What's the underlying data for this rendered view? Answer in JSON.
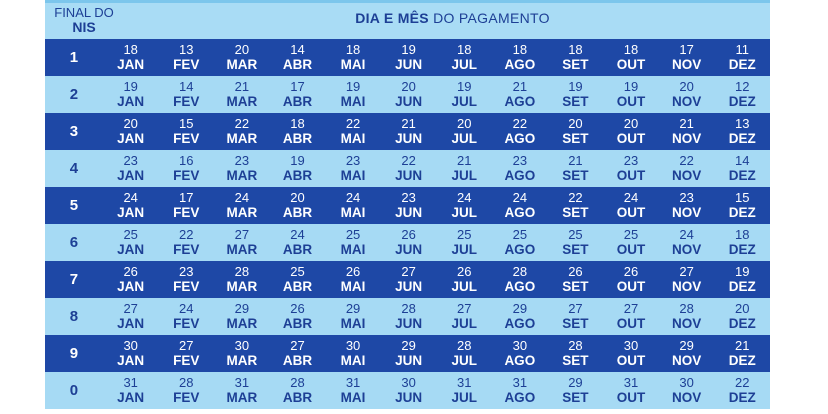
{
  "header": {
    "nis_line1": "FINAL DO",
    "nis_line2": "NIS",
    "title_bold": "DIA E MÊS",
    "title_rest": " DO PAGAMENTO"
  },
  "rows": [
    {
      "nis": "1",
      "days": [
        "18",
        "13",
        "20",
        "14",
        "18",
        "19",
        "18",
        "18",
        "18",
        "18",
        "17",
        "11"
      ]
    },
    {
      "nis": "2",
      "days": [
        "19",
        "14",
        "21",
        "17",
        "19",
        "20",
        "19",
        "21",
        "19",
        "19",
        "20",
        "12"
      ]
    },
    {
      "nis": "3",
      "days": [
        "20",
        "15",
        "22",
        "18",
        "22",
        "21",
        "20",
        "22",
        "20",
        "20",
        "21",
        "13"
      ]
    },
    {
      "nis": "4",
      "days": [
        "23",
        "16",
        "23",
        "19",
        "23",
        "22",
        "21",
        "23",
        "21",
        "23",
        "22",
        "14"
      ]
    },
    {
      "nis": "5",
      "days": [
        "24",
        "17",
        "24",
        "20",
        "24",
        "23",
        "24",
        "24",
        "22",
        "24",
        "23",
        "15"
      ]
    },
    {
      "nis": "6",
      "days": [
        "25",
        "22",
        "27",
        "24",
        "25",
        "26",
        "25",
        "25",
        "25",
        "25",
        "24",
        "18"
      ]
    },
    {
      "nis": "7",
      "days": [
        "26",
        "23",
        "28",
        "25",
        "26",
        "27",
        "26",
        "28",
        "26",
        "26",
        "27",
        "19"
      ]
    },
    {
      "nis": "8",
      "days": [
        "27",
        "24",
        "29",
        "26",
        "29",
        "28",
        "27",
        "29",
        "27",
        "27",
        "28",
        "20"
      ]
    },
    {
      "nis": "9",
      "days": [
        "30",
        "27",
        "30",
        "27",
        "30",
        "29",
        "28",
        "30",
        "28",
        "30",
        "29",
        "21"
      ]
    },
    {
      "nis": "0",
      "days": [
        "31",
        "28",
        "31",
        "28",
        "31",
        "30",
        "31",
        "31",
        "29",
        "31",
        "30",
        "22"
      ]
    }
  ],
  "months": [
    "JAN",
    "FEV",
    "MAR",
    "ABR",
    "MAI",
    "JUN",
    "JUL",
    "AGO",
    "SET",
    "OUT",
    "NOV",
    "DEZ"
  ],
  "colors": {
    "dark_row": "#1e48a6",
    "light_row": "#a6daf4",
    "text_blue": "#1d3f95"
  }
}
